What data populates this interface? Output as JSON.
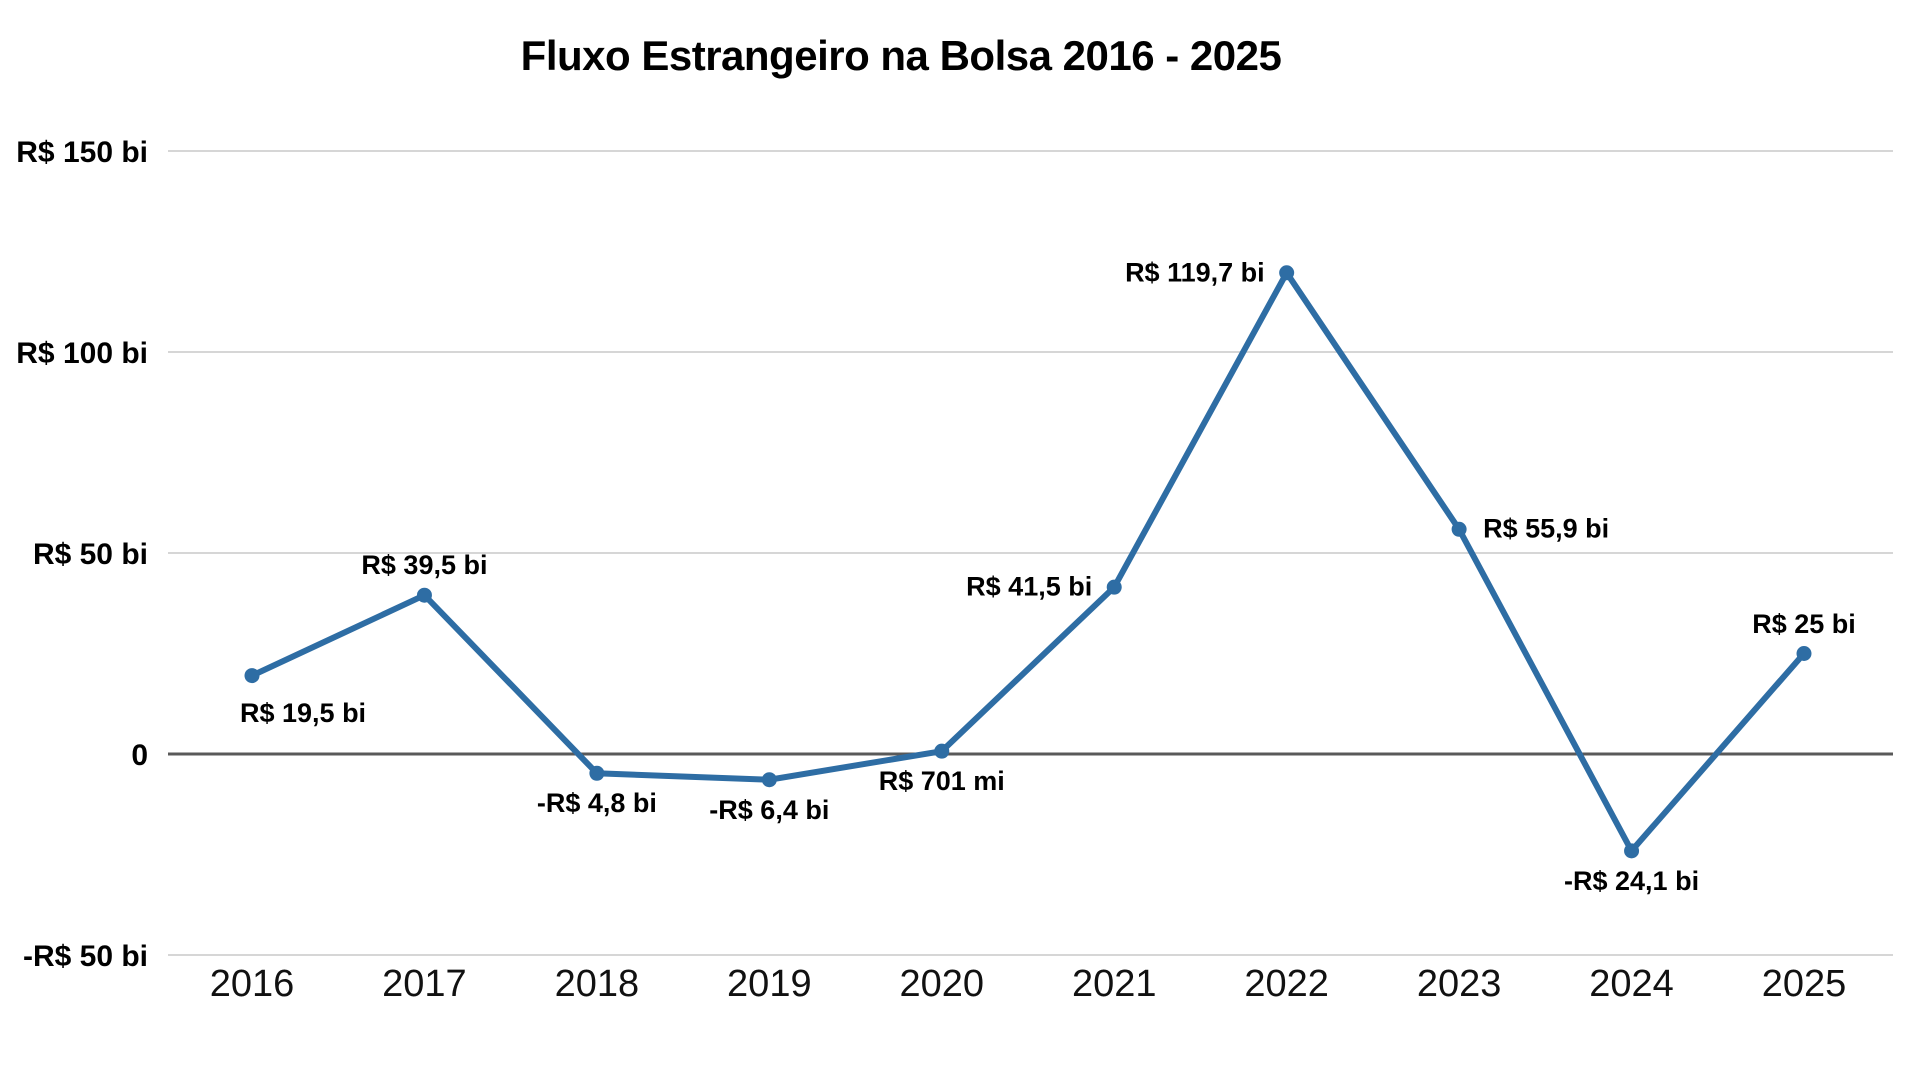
{
  "chart_data": {
    "type": "line",
    "title": "Fluxo Estrangeiro na Bolsa 2016 - 2025",
    "categories": [
      "2016",
      "2017",
      "2018",
      "2019",
      "2020",
      "2021",
      "2022",
      "2023",
      "2024",
      "2025"
    ],
    "values": [
      19.5,
      39.5,
      -4.8,
      -6.4,
      0.701,
      41.5,
      119.7,
      55.9,
      -24.1,
      25
    ],
    "unit": "R$ bilhões",
    "point_labels": [
      "R$ 19,5 bi",
      "R$ 39,5 bi",
      "-R$ 4,8 bi",
      "-R$ 6,4 bi",
      "R$ 701 mi",
      "R$ 41,5 bi",
      "R$ 119,7 bi",
      "R$ 55,9 bi",
      "-R$ 24,1 bi",
      "R$ 25 bi"
    ],
    "point_label_positions": [
      "below-right",
      "above",
      "below",
      "below",
      "below",
      "left",
      "left",
      "right",
      "below",
      "above"
    ],
    "y_ticks": [
      {
        "value": 150,
        "label": "R$ 150 bi"
      },
      {
        "value": 100,
        "label": "R$ 100 bi"
      },
      {
        "value": 50,
        "label": "R$ 50 bi"
      },
      {
        "value": 0,
        "label": "0"
      },
      {
        "value": -50,
        "label": "-R$ 50 bi"
      }
    ],
    "ylim": [
      -50,
      150
    ],
    "xlabel": "",
    "ylabel": "",
    "grid": true,
    "legend": "none",
    "colors": {
      "line": "#2E6DA4",
      "point": "#2E6DA4",
      "grid": "#D6D6D6",
      "zero_line": "#595959",
      "text": "#000000"
    }
  }
}
